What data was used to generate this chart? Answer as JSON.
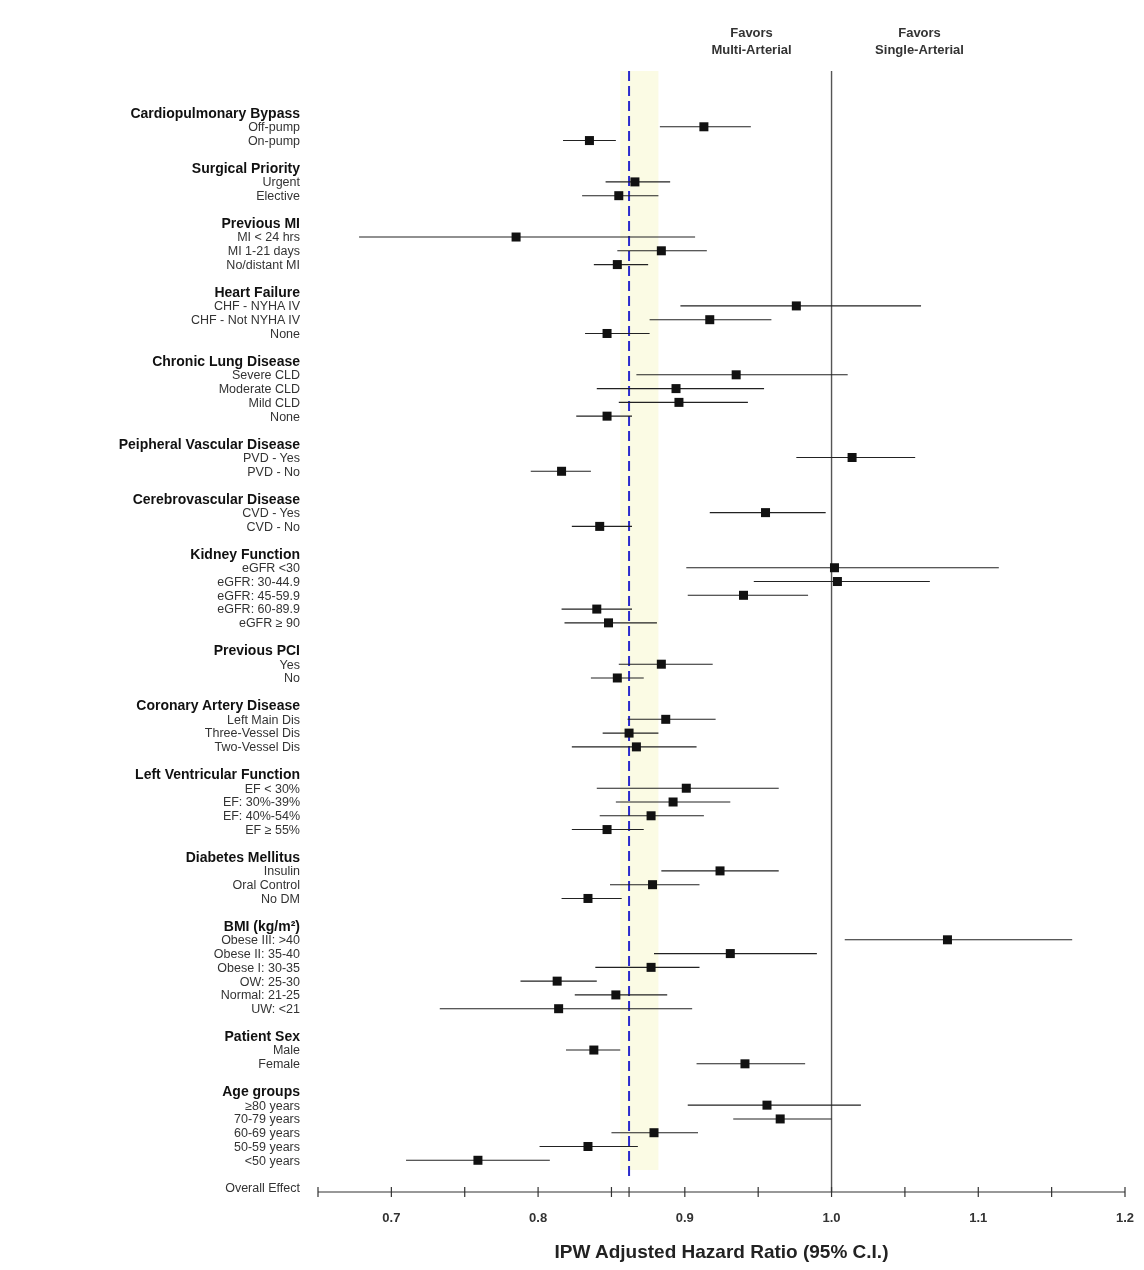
{
  "chart_data": {
    "type": "scatter",
    "orientation": "horizontal",
    "xlabel": "IPW Adjusted Hazard Ratio (95% C.I.)",
    "marker": "square",
    "color": "#111111",
    "categories": [
      "Cardiopulmonary Bypass",
      "Off-pump",
      "On-pump",
      "Surgical Priority",
      "Urgent",
      "Elective",
      "Previous MI",
      "MI < 24 hrs",
      "MI 1-21 days",
      "No/distant MI",
      "Heart Failure",
      "CHF - NYHA IV",
      "CHF - Not NYHA IV",
      "None",
      "Chronic Lung Disease",
      "Severe CLD",
      "Moderate CLD",
      "Mild CLD",
      "None",
      "Peipheral Vascular Disease",
      "PVD - Yes",
      "PVD - No",
      "Cerebrovascular Disease",
      "CVD - Yes",
      "CVD - No",
      "Kidney Function",
      "eGFR <30",
      "eGFR: 30-44.9",
      "eGFR: 45-59.9",
      "eGFR: 60-89.9",
      "eGFR ≥ 90",
      "Previous PCI",
      "Yes",
      "No",
      "Coronary Artery Disease",
      "Left Main Dis",
      "Three-Vessel Dis",
      "Two-Vessel Dis",
      "Left Ventricular Function",
      "EF < 30%",
      "EF: 30%-39%",
      "EF: 40%-54%",
      "EF ≥ 55%",
      "Diabetes Mellitus",
      "Insulin",
      "Oral Control",
      "No DM",
      "BMI (kg/m²)",
      "Obese III: >40",
      "Obese II: 35-40",
      "Obese I: 30-35",
      "OW: 25-30",
      "Normal: 21-25",
      "UW: <21",
      "Patient Sex",
      "Male",
      "Female",
      "Age groups",
      "≥80 years",
      "70-79 years",
      "60-69 years",
      "50-59 years",
      "<50 years",
      "Overall Effect"
    ],
    "values": [
      null,
      0.913,
      0.835,
      null,
      0.866,
      0.855,
      null,
      0.785,
      0.884,
      0.854,
      null,
      0.976,
      0.917,
      0.847,
      null,
      0.935,
      0.894,
      0.896,
      0.847,
      null,
      1.014,
      0.816,
      null,
      0.955,
      0.842,
      null,
      1.002,
      1.004,
      0.94,
      0.84,
      0.848,
      null,
      0.884,
      0.854,
      null,
      0.887,
      0.862,
      0.867,
      null,
      0.901,
      0.892,
      0.877,
      0.847,
      null,
      0.924,
      0.878,
      0.834,
      null,
      1.079,
      0.931,
      0.877,
      0.813,
      0.853,
      0.814,
      null,
      0.838,
      0.941,
      null,
      0.956,
      0.965,
      0.879,
      0.834,
      0.759,
      null
    ],
    "errors": [
      null,
      [
        0.883,
        0.945
      ],
      [
        0.817,
        0.853
      ],
      null,
      [
        0.846,
        0.89
      ],
      [
        0.83,
        0.882
      ],
      null,
      [
        0.678,
        0.907
      ],
      [
        0.854,
        0.915
      ],
      [
        0.838,
        0.875
      ],
      null,
      [
        0.897,
        1.061
      ],
      [
        0.876,
        0.959
      ],
      [
        0.832,
        0.876
      ],
      null,
      [
        0.867,
        1.011
      ],
      [
        0.84,
        0.954
      ],
      [
        0.855,
        0.943
      ],
      [
        0.826,
        0.864
      ],
      null,
      [
        0.976,
        1.057
      ],
      [
        0.795,
        0.836
      ],
      null,
      [
        0.917,
        0.996
      ],
      [
        0.823,
        0.864
      ],
      null,
      [
        0.901,
        1.114
      ],
      [
        0.947,
        1.067
      ],
      [
        0.902,
        0.984
      ],
      [
        0.816,
        0.864
      ],
      [
        0.818,
        0.881
      ],
      null,
      [
        0.855,
        0.919
      ],
      [
        0.836,
        0.872
      ],
      null,
      [
        0.861,
        0.921
      ],
      [
        0.844,
        0.882
      ],
      [
        0.823,
        0.908
      ],
      null,
      [
        0.84,
        0.964
      ],
      [
        0.853,
        0.931
      ],
      [
        0.842,
        0.913
      ],
      [
        0.823,
        0.872
      ],
      null,
      [
        0.884,
        0.964
      ],
      [
        0.849,
        0.91
      ],
      [
        0.816,
        0.857
      ],
      null,
      [
        1.009,
        1.164
      ],
      [
        0.879,
        0.99
      ],
      [
        0.839,
        0.91
      ],
      [
        0.788,
        0.84
      ],
      [
        0.825,
        0.888
      ],
      [
        0.733,
        0.905
      ],
      null,
      [
        0.819,
        0.856
      ],
      [
        0.908,
        0.982
      ],
      null,
      [
        0.902,
        1.02
      ],
      [
        0.933,
        1.0
      ],
      [
        0.85,
        0.909
      ],
      [
        0.801,
        0.868
      ],
      [
        0.71,
        0.808
      ],
      null
    ],
    "xlim": [
      0.65,
      1.2
    ],
    "xticks": [
      {
        "value": 0.65,
        "label": null
      },
      0.7,
      {
        "value": 0.75,
        "label": null
      },
      0.8,
      {
        "value": 0.85,
        "label": null
      },
      {
        "value": 0.862,
        "label": null
      },
      0.9,
      {
        "value": 0.95,
        "label": null
      },
      {
        "value": 1,
        "label": "1.0"
      },
      {
        "value": 1.05,
        "label": null
      },
      1.1,
      {
        "value": 1.15,
        "label": null
      },
      1.2
    ],
    "ref_lines": [
      {
        "axis": "x",
        "value": 1,
        "color": "#555555",
        "line_style": "solid"
      },
      {
        "axis": "x",
        "value": 0.862,
        "color": "#2a2acc",
        "line_style": "dashed"
      }
    ],
    "bands": [
      {
        "axis": "x",
        "from": 0.856,
        "to": 0.882,
        "color": "#fbfbe4"
      }
    ],
    "annotations": [
      "Favors\nMulti-Arterial",
      "Favors\nSingle-Arterial"
    ]
  }
}
